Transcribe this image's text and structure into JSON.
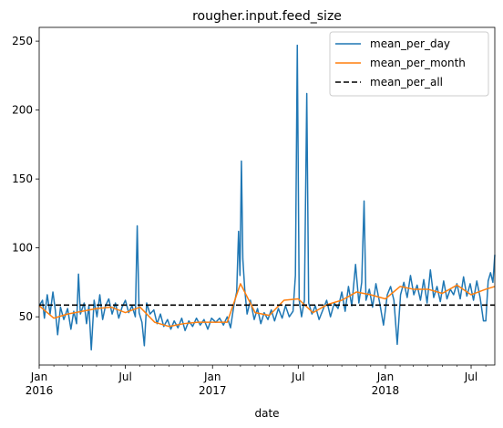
{
  "chart_data": {
    "type": "line",
    "title": "rougher.input.feed_size",
    "xlabel": "date",
    "ylabel": "",
    "xlim": [
      "2016-01-01",
      "2018-08-20"
    ],
    "ylim": [
      15,
      260
    ],
    "y_ticks": [
      50,
      100,
      150,
      200,
      250
    ],
    "x_major_ticks": [
      {
        "date": "2016-01-01",
        "label": "Jan",
        "sublabel": "2016"
      },
      {
        "date": "2016-07-01",
        "label": "Jul",
        "sublabel": ""
      },
      {
        "date": "2017-01-01",
        "label": "Jan",
        "sublabel": "2017"
      },
      {
        "date": "2017-07-01",
        "label": "Jul",
        "sublabel": ""
      },
      {
        "date": "2018-01-01",
        "label": "Jan",
        "sublabel": "2018"
      },
      {
        "date": "2018-07-01",
        "label": "Jul",
        "sublabel": ""
      }
    ],
    "grid": false,
    "legend_position": "top-right",
    "series": [
      {
        "name": "mean_per_day",
        "color": "#1f77b4",
        "style": "solid",
        "points": [
          [
            "2016-01-01",
            58
          ],
          [
            "2016-01-08",
            62
          ],
          [
            "2016-01-12",
            49
          ],
          [
            "2016-01-18",
            66
          ],
          [
            "2016-01-24",
            52
          ],
          [
            "2016-01-30",
            68
          ],
          [
            "2016-02-04",
            55
          ],
          [
            "2016-02-09",
            37
          ],
          [
            "2016-02-15",
            57
          ],
          [
            "2016-02-22",
            48
          ],
          [
            "2016-03-01",
            56
          ],
          [
            "2016-03-08",
            41
          ],
          [
            "2016-03-14",
            54
          ],
          [
            "2016-03-20",
            45
          ],
          [
            "2016-03-24",
            81
          ],
          [
            "2016-03-28",
            52
          ],
          [
            "2016-04-05",
            60
          ],
          [
            "2016-04-10",
            45
          ],
          [
            "2016-04-15",
            58
          ],
          [
            "2016-04-20",
            26
          ],
          [
            "2016-04-26",
            62
          ],
          [
            "2016-05-02",
            50
          ],
          [
            "2016-05-08",
            66
          ],
          [
            "2016-05-14",
            48
          ],
          [
            "2016-05-20",
            58
          ],
          [
            "2016-05-27",
            63
          ],
          [
            "2016-06-03",
            52
          ],
          [
            "2016-06-10",
            60
          ],
          [
            "2016-06-17",
            49
          ],
          [
            "2016-06-24",
            57
          ],
          [
            "2016-07-01",
            62
          ],
          [
            "2016-07-08",
            53
          ],
          [
            "2016-07-15",
            58
          ],
          [
            "2016-07-22",
            50
          ],
          [
            "2016-07-26",
            116
          ],
          [
            "2016-07-30",
            53
          ],
          [
            "2016-08-05",
            46
          ],
          [
            "2016-08-10",
            29
          ],
          [
            "2016-08-15",
            60
          ],
          [
            "2016-08-22",
            52
          ],
          [
            "2016-08-30",
            55
          ],
          [
            "2016-09-06",
            45
          ],
          [
            "2016-09-13",
            52
          ],
          [
            "2016-09-20",
            43
          ],
          [
            "2016-09-28",
            48
          ],
          [
            "2016-10-05",
            41
          ],
          [
            "2016-10-12",
            47
          ],
          [
            "2016-10-20",
            42
          ],
          [
            "2016-10-28",
            49
          ],
          [
            "2016-11-04",
            40
          ],
          [
            "2016-11-12",
            47
          ],
          [
            "2016-11-20",
            43
          ],
          [
            "2016-11-28",
            49
          ],
          [
            "2016-12-06",
            44
          ],
          [
            "2016-12-14",
            48
          ],
          [
            "2016-12-22",
            41
          ],
          [
            "2016-12-30",
            49
          ],
          [
            "2017-01-08",
            46
          ],
          [
            "2017-01-16",
            49
          ],
          [
            "2017-01-24",
            44
          ],
          [
            "2017-02-01",
            50
          ],
          [
            "2017-02-08",
            42
          ],
          [
            "2017-02-15",
            58
          ],
          [
            "2017-02-21",
            68
          ],
          [
            "2017-02-25",
            112
          ],
          [
            "2017-02-28",
            80
          ],
          [
            "2017-03-03",
            163
          ],
          [
            "2017-03-06",
            92
          ],
          [
            "2017-03-10",
            70
          ],
          [
            "2017-03-15",
            52
          ],
          [
            "2017-03-22",
            62
          ],
          [
            "2017-03-30",
            48
          ],
          [
            "2017-04-06",
            56
          ],
          [
            "2017-04-13",
            45
          ],
          [
            "2017-04-20",
            53
          ],
          [
            "2017-04-28",
            48
          ],
          [
            "2017-05-05",
            55
          ],
          [
            "2017-05-12",
            47
          ],
          [
            "2017-05-20",
            56
          ],
          [
            "2017-05-28",
            49
          ],
          [
            "2017-06-04",
            58
          ],
          [
            "2017-06-12",
            50
          ],
          [
            "2017-06-20",
            54
          ],
          [
            "2017-06-25",
            80
          ],
          [
            "2017-06-29",
            247
          ],
          [
            "2017-07-03",
            62
          ],
          [
            "2017-07-08",
            50
          ],
          [
            "2017-07-14",
            62
          ],
          [
            "2017-07-19",
            212
          ],
          [
            "2017-07-23",
            60
          ],
          [
            "2017-07-30",
            52
          ],
          [
            "2017-08-06",
            58
          ],
          [
            "2017-08-14",
            48
          ],
          [
            "2017-08-22",
            55
          ],
          [
            "2017-08-30",
            62
          ],
          [
            "2017-09-07",
            50
          ],
          [
            "2017-09-15",
            60
          ],
          [
            "2017-09-23",
            56
          ],
          [
            "2017-10-01",
            68
          ],
          [
            "2017-10-08",
            54
          ],
          [
            "2017-10-15",
            72
          ],
          [
            "2017-10-22",
            58
          ],
          [
            "2017-10-30",
            88
          ],
          [
            "2017-11-06",
            60
          ],
          [
            "2017-11-12",
            75
          ],
          [
            "2017-11-17",
            134
          ],
          [
            "2017-11-21",
            62
          ],
          [
            "2017-11-28",
            70
          ],
          [
            "2017-12-05",
            57
          ],
          [
            "2017-12-12",
            74
          ],
          [
            "2017-12-20",
            60
          ],
          [
            "2017-12-28",
            44
          ],
          [
            "2018-01-05",
            66
          ],
          [
            "2018-01-12",
            72
          ],
          [
            "2018-01-19",
            62
          ],
          [
            "2018-01-26",
            30
          ],
          [
            "2018-02-02",
            66
          ],
          [
            "2018-02-09",
            75
          ],
          [
            "2018-02-16",
            64
          ],
          [
            "2018-02-23",
            80
          ],
          [
            "2018-03-02",
            66
          ],
          [
            "2018-03-09",
            73
          ],
          [
            "2018-03-16",
            62
          ],
          [
            "2018-03-23",
            77
          ],
          [
            "2018-03-30",
            60
          ],
          [
            "2018-04-06",
            84
          ],
          [
            "2018-04-13",
            64
          ],
          [
            "2018-04-20",
            72
          ],
          [
            "2018-04-27",
            61
          ],
          [
            "2018-05-04",
            76
          ],
          [
            "2018-05-11",
            63
          ],
          [
            "2018-05-18",
            70
          ],
          [
            "2018-05-25",
            66
          ],
          [
            "2018-06-01",
            74
          ],
          [
            "2018-06-08",
            63
          ],
          [
            "2018-06-15",
            79
          ],
          [
            "2018-06-22",
            65
          ],
          [
            "2018-06-29",
            74
          ],
          [
            "2018-07-06",
            62
          ],
          [
            "2018-07-13",
            76
          ],
          [
            "2018-07-20",
            64
          ],
          [
            "2018-07-27",
            47
          ],
          [
            "2018-08-01",
            47
          ],
          [
            "2018-08-06",
            76
          ],
          [
            "2018-08-11",
            82
          ],
          [
            "2018-08-16",
            75
          ],
          [
            "2018-08-20",
            95
          ]
        ]
      },
      {
        "name": "mean_per_month",
        "color": "#ff7f0e",
        "style": "solid",
        "points": [
          [
            "2016-01-01",
            58
          ],
          [
            "2016-02-01",
            49
          ],
          [
            "2016-03-01",
            52
          ],
          [
            "2016-04-01",
            54
          ],
          [
            "2016-05-01",
            56
          ],
          [
            "2016-06-01",
            57
          ],
          [
            "2016-07-01",
            53
          ],
          [
            "2016-08-01",
            57
          ],
          [
            "2016-09-01",
            46
          ],
          [
            "2016-10-01",
            43
          ],
          [
            "2016-11-01",
            45
          ],
          [
            "2016-12-01",
            46
          ],
          [
            "2017-01-01",
            46
          ],
          [
            "2017-02-01",
            46
          ],
          [
            "2017-03-01",
            74
          ],
          [
            "2017-04-01",
            53
          ],
          [
            "2017-05-01",
            51
          ],
          [
            "2017-06-01",
            62
          ],
          [
            "2017-07-01",
            63
          ],
          [
            "2017-08-01",
            53
          ],
          [
            "2017-09-01",
            59
          ],
          [
            "2017-10-01",
            62
          ],
          [
            "2017-11-01",
            68
          ],
          [
            "2017-12-01",
            66
          ],
          [
            "2018-01-01",
            63
          ],
          [
            "2018-02-01",
            72
          ],
          [
            "2018-03-01",
            70
          ],
          [
            "2018-04-01",
            70
          ],
          [
            "2018-05-01",
            67
          ],
          [
            "2018-06-01",
            73
          ],
          [
            "2018-07-01",
            66
          ],
          [
            "2018-08-01",
            70
          ],
          [
            "2018-08-20",
            72
          ]
        ]
      },
      {
        "name": "mean_per_all",
        "color": "#000000",
        "style": "dashed",
        "points": [
          [
            "2016-01-01",
            58.5
          ],
          [
            "2018-08-20",
            58.5
          ]
        ]
      }
    ]
  }
}
